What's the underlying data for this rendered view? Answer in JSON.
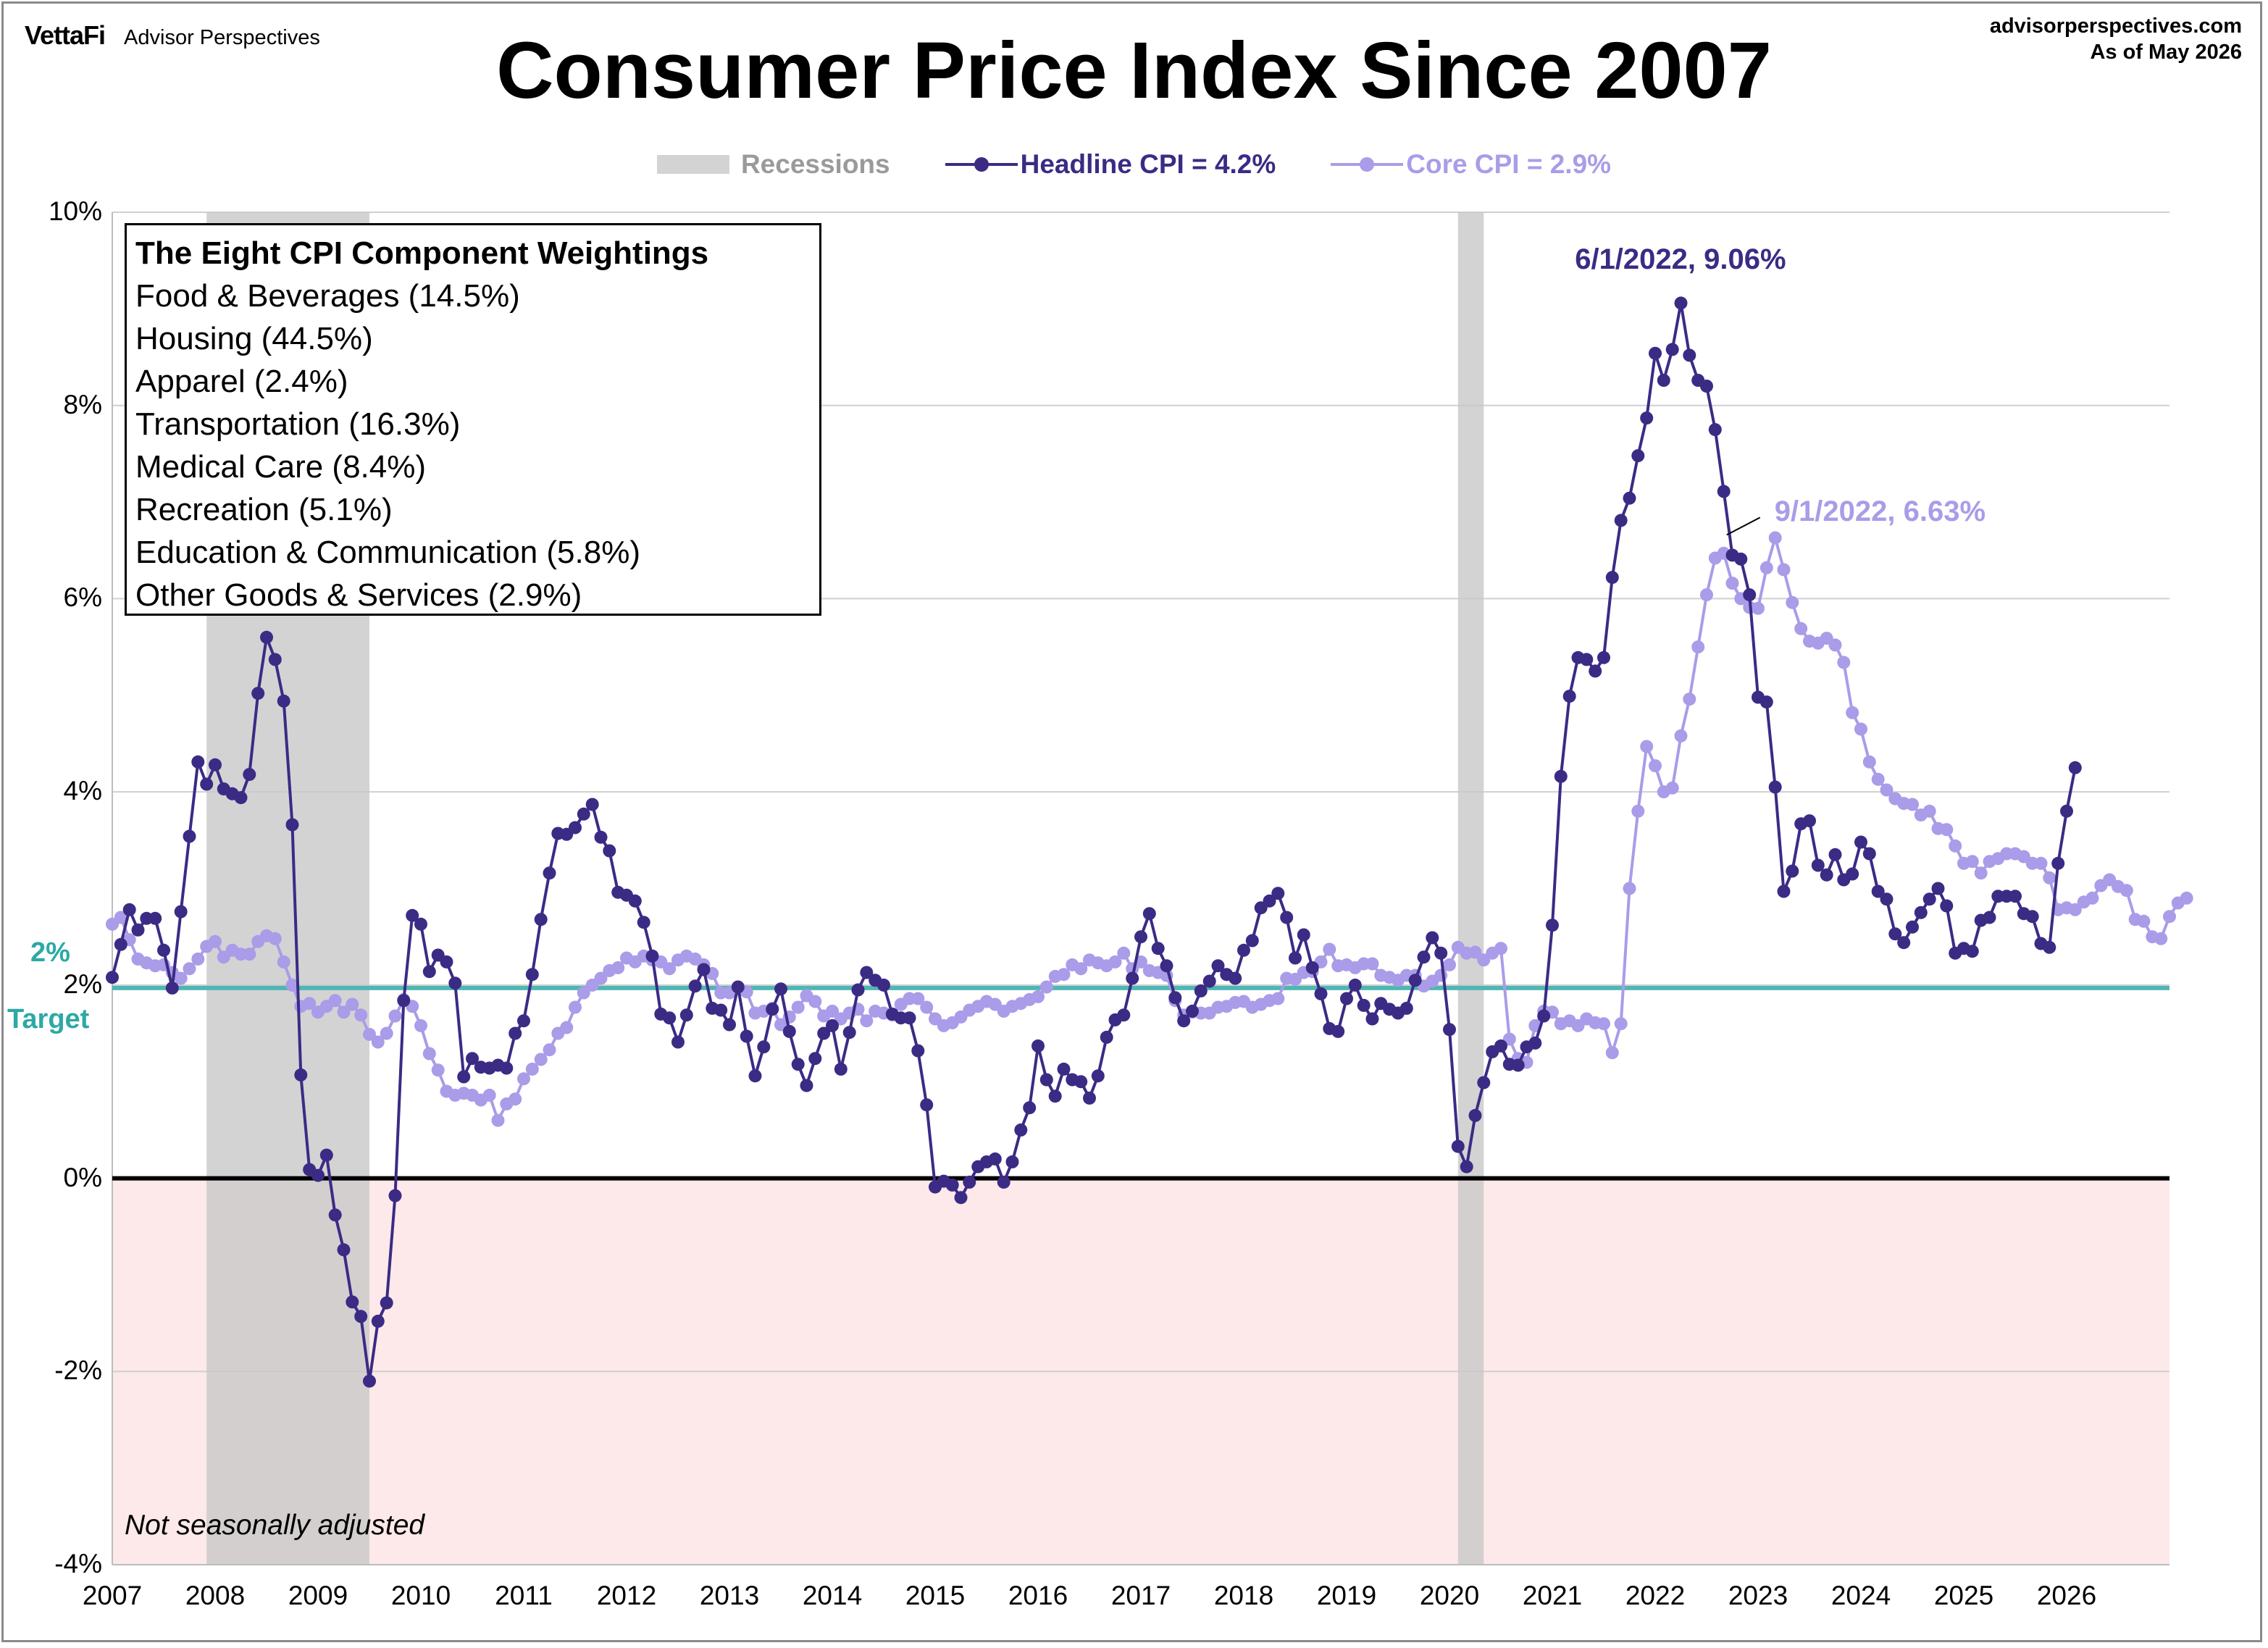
{
  "header": {
    "logo": "VettaFi",
    "brand": "Advisor Perspectives",
    "site": "advisorperspectives.com",
    "as_of": "As of May 2026"
  },
  "chart_data": {
    "type": "line",
    "title": "Consumer Price Index Since 2007",
    "ylim": [
      -4,
      10
    ],
    "yticks": [
      -4,
      -2,
      0,
      2,
      4,
      6,
      8,
      10
    ],
    "ytick_labels": [
      "-4%",
      "-2%",
      "0%",
      "2%",
      "4%",
      "6%",
      "8%",
      "10%"
    ],
    "xlim": [
      2007.0,
      2027.0
    ],
    "xticks": [
      2007,
      2008,
      2009,
      2010,
      2011,
      2012,
      2013,
      2014,
      2015,
      2016,
      2017,
      2018,
      2019,
      2020,
      2021,
      2022,
      2023,
      2024,
      2025,
      2026
    ],
    "xtick_labels": [
      "2007",
      "2008",
      "2009",
      "2010",
      "2011",
      "2012",
      "2013",
      "2014",
      "2015",
      "2016",
      "2017",
      "2018",
      "2019",
      "2020",
      "2021",
      "2022",
      "2023",
      "2024",
      "2025",
      "2026"
    ],
    "grid": true,
    "legend_position": "top-center",
    "target": {
      "value": 1.97,
      "label_top": "2%",
      "label_bottom": "Target"
    },
    "recessions": [
      {
        "start": 2007.917,
        "end": 2009.5,
        "label": "Recessions"
      },
      {
        "start": 2020.083,
        "end": 2020.333
      }
    ],
    "negative_region_color": "#fde9e9",
    "series": [
      {
        "name": "Headline CPI = 4.2%",
        "color": "#3b2b85",
        "start": 2007.0,
        "values": [
          2.08,
          2.42,
          2.78,
          2.57,
          2.69,
          2.69,
          2.36,
          1.97,
          2.76,
          3.54,
          4.31,
          4.08,
          4.28,
          4.03,
          3.98,
          3.94,
          4.18,
          5.02,
          5.6,
          5.37,
          4.94,
          3.66,
          1.07,
          0.09,
          0.03,
          0.24,
          -0.38,
          -0.74,
          -1.28,
          -1.43,
          -2.1,
          -1.48,
          -1.29,
          -0.18,
          1.84,
          2.72,
          2.63,
          2.14,
          2.31,
          2.24,
          2.02,
          1.05,
          1.24,
          1.15,
          1.14,
          1.17,
          1.14,
          1.5,
          1.63,
          2.11,
          2.68,
          3.16,
          3.57,
          3.56,
          3.63,
          3.77,
          3.87,
          3.53,
          3.39,
          2.96,
          2.93,
          2.87,
          2.65,
          2.3,
          1.7,
          1.66,
          1.41,
          1.69,
          1.99,
          2.16,
          1.76,
          1.74,
          1.59,
          1.98,
          1.47,
          1.06,
          1.36,
          1.75,
          1.96,
          1.52,
          1.18,
          0.96,
          1.24,
          1.5,
          1.58,
          1.13,
          1.51,
          1.95,
          2.13,
          2.05,
          2.0,
          1.7,
          1.66,
          1.66,
          1.32,
          0.76,
          -0.09,
          -0.03,
          -0.07,
          -0.2,
          -0.04,
          0.12,
          0.17,
          0.2,
          -0.04,
          0.17,
          0.5,
          0.73,
          1.37,
          1.02,
          0.85,
          1.13,
          1.02,
          1.0,
          0.83,
          1.06,
          1.46,
          1.64,
          1.69,
          2.07,
          2.5,
          2.74,
          2.38,
          2.2,
          1.87,
          1.63,
          1.73,
          1.94,
          2.04,
          2.2,
          2.11,
          2.07,
          2.36,
          2.46,
          2.8,
          2.87,
          2.95,
          2.7,
          2.28,
          2.52,
          2.18,
          1.91,
          1.55,
          1.52,
          1.86,
          2.0,
          1.79,
          1.65,
          1.81,
          1.75,
          1.71,
          1.76,
          2.05,
          2.29,
          2.49,
          2.33,
          1.54,
          0.33,
          0.12,
          0.65,
          0.99,
          1.31,
          1.37,
          1.18,
          1.17,
          1.36,
          1.4,
          1.68,
          2.62,
          4.16,
          4.99,
          5.39,
          5.37,
          5.25,
          5.39,
          6.22,
          6.81,
          7.04,
          7.48,
          7.87,
          8.54,
          8.26,
          8.58,
          9.06,
          8.52,
          8.26,
          8.2,
          7.75,
          7.11,
          6.45,
          6.41,
          6.04,
          4.98,
          4.93,
          4.05,
          2.97,
          3.18,
          3.67,
          3.7,
          3.24,
          3.14,
          3.35,
          3.09,
          3.15,
          3.48,
          3.36,
          2.97,
          2.89,
          2.53,
          2.44,
          2.6,
          2.75,
          2.89,
          3.0,
          2.82,
          2.33,
          2.38,
          2.35,
          2.67,
          2.7,
          2.92,
          2.92,
          2.92,
          2.74,
          2.71,
          2.43,
          2.39,
          3.26,
          3.8,
          4.25
        ]
      },
      {
        "name": "Core CPI =  2.9%",
        "color": "#aa9ce8",
        "start": 2007.0,
        "values": [
          2.63,
          2.7,
          2.47,
          2.27,
          2.23,
          2.2,
          2.21,
          2.13,
          2.07,
          2.17,
          2.27,
          2.4,
          2.45,
          2.29,
          2.36,
          2.32,
          2.32,
          2.45,
          2.51,
          2.48,
          2.24,
          2.0,
          1.78,
          1.81,
          1.72,
          1.78,
          1.84,
          1.72,
          1.8,
          1.69,
          1.49,
          1.41,
          1.5,
          1.68,
          1.85,
          1.78,
          1.58,
          1.29,
          1.12,
          0.9,
          0.86,
          0.88,
          0.86,
          0.81,
          0.86,
          0.6,
          0.77,
          0.82,
          1.03,
          1.13,
          1.23,
          1.33,
          1.5,
          1.56,
          1.77,
          1.92,
          2.0,
          2.07,
          2.15,
          2.18,
          2.28,
          2.24,
          2.3,
          2.26,
          2.24,
          2.17,
          2.26,
          2.3,
          2.27,
          2.21,
          2.12,
          1.92,
          1.92,
          1.98,
          1.93,
          1.71,
          1.73,
          1.76,
          1.59,
          1.67,
          1.77,
          1.89,
          1.83,
          1.68,
          1.73,
          1.65,
          1.71,
          1.75,
          1.63,
          1.73,
          1.71,
          1.69,
          1.8,
          1.86,
          1.86,
          1.77,
          1.65,
          1.58,
          1.61,
          1.67,
          1.74,
          1.78,
          1.83,
          1.8,
          1.73,
          1.78,
          1.81,
          1.85,
          1.88,
          1.98,
          2.09,
          2.11,
          2.21,
          2.17,
          2.26,
          2.23,
          2.2,
          2.24,
          2.33,
          2.17,
          2.24,
          2.15,
          2.13,
          2.1,
          1.84,
          1.69,
          1.72,
          1.71,
          1.71,
          1.77,
          1.78,
          1.82,
          1.83,
          1.77,
          1.8,
          1.84,
          1.86,
          2.07,
          2.06,
          2.13,
          2.14,
          2.24,
          2.37,
          2.2,
          2.21,
          2.18,
          2.22,
          2.22,
          2.1,
          2.08,
          2.05,
          2.1,
          2.1,
          1.99,
          2.04,
          2.1,
          2.21,
          2.39,
          2.33,
          2.34,
          2.26,
          2.33,
          2.38,
          1.44,
          1.24,
          1.2,
          1.58,
          1.73,
          1.72,
          1.6,
          1.63,
          1.58,
          1.65,
          1.61,
          1.6,
          1.3,
          1.6,
          3.0,
          3.8,
          4.47,
          4.27,
          4.0,
          4.04,
          4.58,
          4.96,
          5.5,
          6.04,
          6.42,
          6.47,
          6.16,
          6.0,
          5.91,
          5.9,
          6.32,
          6.63,
          6.3,
          5.96,
          5.69,
          5.56,
          5.54,
          5.59,
          5.52,
          5.34,
          4.82,
          4.65,
          4.31,
          4.13,
          4.02,
          3.93,
          3.88,
          3.87,
          3.76,
          3.8,
          3.62,
          3.61,
          3.44,
          3.26,
          3.28,
          3.16,
          3.28,
          3.31,
          3.36,
          3.36,
          3.33,
          3.26,
          3.26,
          3.11,
          2.78,
          2.8,
          2.78,
          2.86,
          2.9,
          3.03,
          3.09,
          3.02,
          2.98,
          2.68,
          2.66,
          2.5,
          2.48,
          2.71,
          2.85,
          2.9
        ]
      }
    ],
    "annotations": [
      {
        "text": "6/1/2022, 9.06%",
        "x": 2022.417,
        "y": 9.06,
        "series": 0
      },
      {
        "text": "9/1/2022, 6.63%",
        "x": 2022.667,
        "y": 6.63,
        "series": 1
      }
    ],
    "weights_box": {
      "title": "The Eight CPI Component Weightings",
      "items": [
        "Food & Beverages (14.5%)",
        "Housing (44.5%)",
        "Apparel (2.4%)",
        "Transportation (16.3%)",
        "Medical Care (8.4%)",
        "Recreation (5.1%)",
        "Education & Communication (5.8%)",
        "Other Goods & Services (2.9%)"
      ]
    },
    "note": "Not seasonally adjusted"
  }
}
